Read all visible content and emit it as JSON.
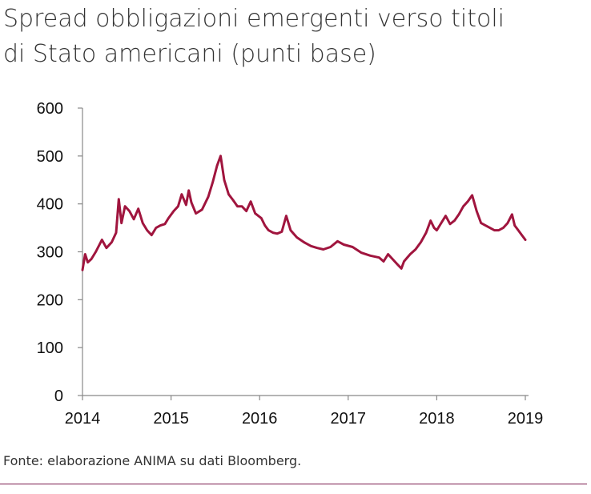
{
  "title_lines": [
    "Spread obbligazioni emergenti verso titoli",
    "di Stato americani (punti base)"
  ],
  "source": "Fonte: elaborazione ANIMA su dati Bloomberg.",
  "colors": {
    "series": "#a0153e",
    "axis": "#888888",
    "rule": "#7a1a4c"
  },
  "chart_data": {
    "type": "line",
    "title": "Spread obbligazioni emergenti verso titoli di Stato americani (punti base)",
    "xlabel": "",
    "ylabel": "",
    "xlim": [
      2014,
      2019
    ],
    "ylim": [
      0,
      600
    ],
    "x_ticks": [
      "2014",
      "2015",
      "2016",
      "2017",
      "2018",
      "2019"
    ],
    "y_ticks": [
      "0",
      "100",
      "200",
      "300",
      "400",
      "500",
      "600"
    ],
    "grid": false,
    "series": [
      {
        "values": [
          [
            2014.0,
            262
          ],
          [
            2014.03,
            295
          ],
          [
            2014.06,
            278
          ],
          [
            2014.1,
            285
          ],
          [
            2014.15,
            300
          ],
          [
            2014.22,
            325
          ],
          [
            2014.27,
            308
          ],
          [
            2014.33,
            320
          ],
          [
            2014.38,
            340
          ],
          [
            2014.41,
            410
          ],
          [
            2014.44,
            360
          ],
          [
            2014.48,
            395
          ],
          [
            2014.53,
            385
          ],
          [
            2014.58,
            368
          ],
          [
            2014.63,
            390
          ],
          [
            2014.68,
            360
          ],
          [
            2014.73,
            345
          ],
          [
            2014.78,
            335
          ],
          [
            2014.83,
            350
          ],
          [
            2014.88,
            355
          ],
          [
            2014.93,
            358
          ],
          [
            2014.97,
            370
          ],
          [
            2015.03,
            385
          ],
          [
            2015.08,
            395
          ],
          [
            2015.12,
            420
          ],
          [
            2015.17,
            398
          ],
          [
            2015.2,
            428
          ],
          [
            2015.23,
            403
          ],
          [
            2015.28,
            380
          ],
          [
            2015.35,
            388
          ],
          [
            2015.42,
            415
          ],
          [
            2015.47,
            445
          ],
          [
            2015.52,
            480
          ],
          [
            2015.56,
            500
          ],
          [
            2015.6,
            450
          ],
          [
            2015.65,
            420
          ],
          [
            2015.7,
            408
          ],
          [
            2015.75,
            395
          ],
          [
            2015.8,
            395
          ],
          [
            2015.85,
            385
          ],
          [
            2015.9,
            405
          ],
          [
            2015.95,
            380
          ],
          [
            2016.02,
            370
          ],
          [
            2016.06,
            355
          ],
          [
            2016.1,
            345
          ],
          [
            2016.15,
            340
          ],
          [
            2016.2,
            338
          ],
          [
            2016.25,
            342
          ],
          [
            2016.3,
            375
          ],
          [
            2016.35,
            345
          ],
          [
            2016.42,
            330
          ],
          [
            2016.5,
            320
          ],
          [
            2016.58,
            312
          ],
          [
            2016.65,
            308
          ],
          [
            2016.72,
            305
          ],
          [
            2016.8,
            310
          ],
          [
            2016.88,
            322
          ],
          [
            2016.95,
            315
          ],
          [
            2017.05,
            310
          ],
          [
            2017.15,
            298
          ],
          [
            2017.25,
            292
          ],
          [
            2017.35,
            288
          ],
          [
            2017.4,
            280
          ],
          [
            2017.45,
            295
          ],
          [
            2017.5,
            285
          ],
          [
            2017.55,
            275
          ],
          [
            2017.6,
            265
          ],
          [
            2017.63,
            280
          ],
          [
            2017.7,
            295
          ],
          [
            2017.76,
            305
          ],
          [
            2017.82,
            320
          ],
          [
            2017.88,
            340
          ],
          [
            2017.93,
            365
          ],
          [
            2017.97,
            350
          ],
          [
            2018.0,
            345
          ],
          [
            2018.05,
            360
          ],
          [
            2018.1,
            375
          ],
          [
            2018.15,
            358
          ],
          [
            2018.2,
            365
          ],
          [
            2018.25,
            378
          ],
          [
            2018.3,
            395
          ],
          [
            2018.35,
            405
          ],
          [
            2018.4,
            418
          ],
          [
            2018.45,
            385
          ],
          [
            2018.5,
            360
          ],
          [
            2018.55,
            355
          ],
          [
            2018.6,
            350
          ],
          [
            2018.65,
            345
          ],
          [
            2018.7,
            345
          ],
          [
            2018.75,
            350
          ],
          [
            2018.8,
            360
          ],
          [
            2018.85,
            378
          ],
          [
            2018.88,
            355
          ],
          [
            2018.92,
            345
          ],
          [
            2018.96,
            335
          ],
          [
            2019.0,
            325
          ]
        ]
      }
    ]
  }
}
